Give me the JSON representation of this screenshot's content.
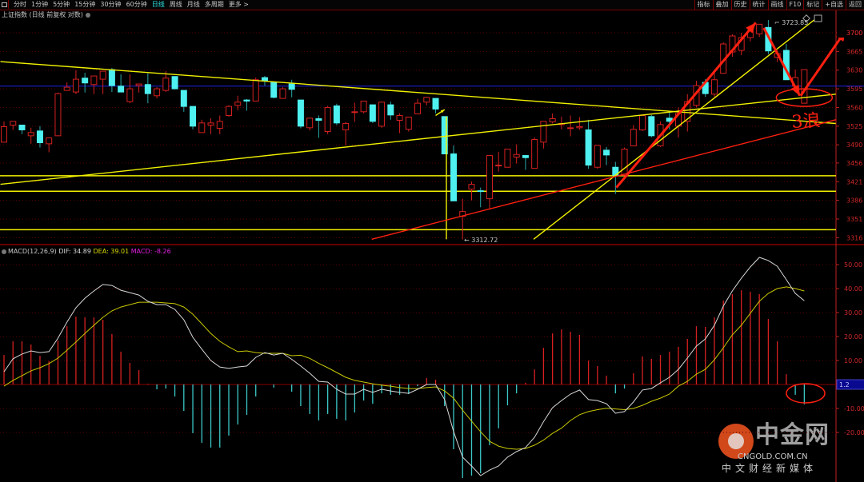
{
  "toolbar": {
    "periods": [
      "分时",
      "1分钟",
      "5分钟",
      "15分钟",
      "30分钟",
      "60分钟",
      "日线",
      "周线",
      "月线",
      "多周期",
      "更多 >"
    ],
    "active_period": "日线",
    "actions": [
      "指标",
      "叠加",
      "历史",
      "统计",
      "画线",
      "F10",
      "标记",
      "+自选",
      "返回"
    ]
  },
  "chart_title": "上证指数 (日线 前复权 对数)",
  "macd_legend": {
    "name": "MACD(12,26,9)",
    "dif": "DIF: 34.89",
    "dea": "DEA: 39.01",
    "macd": "MACD: -8.26"
  },
  "colors": {
    "up": "#d42020",
    "down": "#4ef0f0",
    "dif": "#d8d8d8",
    "dea": "#c8c800",
    "axis": "#c02020",
    "grid": "#5a0000",
    "priceline": "#2020e0",
    "trend_yellow": "#f0f000",
    "trend_red": "#ff2010"
  },
  "watermark": {
    "name": "中金网",
    "url": "CNGOLD.COM.CN",
    "slogan": "中文财经新媒体"
  },
  "chart_data": [
    {
      "type": "candlestick",
      "title": "",
      "scale": "log",
      "y_ticks": [
        3700,
        3665,
        3630,
        3595,
        3560,
        3525,
        3490,
        3456,
        3421,
        3386,
        3351,
        3316
      ],
      "ylim": [
        3305,
        3735
      ],
      "y_marker_label": "3700",
      "high_label": "3723.85",
      "low_label": "3312.72",
      "grid": true,
      "ohlc": [
        [
          3495,
          3534,
          3495,
          3524
        ],
        [
          3527,
          3534,
          3518,
          3534
        ],
        [
          3527,
          3527,
          3510,
          3518
        ],
        [
          3507,
          3522,
          3492,
          3513
        ],
        [
          3516,
          3525,
          3485,
          3494
        ],
        [
          3492,
          3503,
          3476,
          3503
        ],
        [
          3507,
          3588,
          3507,
          3586
        ],
        [
          3592,
          3607,
          3592,
          3598
        ],
        [
          3589,
          3630,
          3585,
          3613
        ],
        [
          3615,
          3625,
          3588,
          3606
        ],
        [
          3603,
          3619,
          3585,
          3619
        ],
        [
          3613,
          3628,
          3585,
          3628
        ],
        [
          3631,
          3634,
          3589,
          3601
        ],
        [
          3600,
          3622,
          3589,
          3589
        ],
        [
          3571,
          3622,
          3568,
          3595
        ],
        [
          3601,
          3604,
          3588,
          3604
        ],
        [
          3603,
          3624,
          3568,
          3586
        ],
        [
          3582,
          3598,
          3577,
          3595
        ],
        [
          3592,
          3628,
          3589,
          3615
        ],
        [
          3618,
          3618,
          3594,
          3595
        ],
        [
          3592,
          3592,
          3552,
          3562
        ],
        [
          3562,
          3562,
          3519,
          3525
        ],
        [
          3513,
          3537,
          3513,
          3531
        ],
        [
          3527,
          3540,
          3510,
          3531
        ],
        [
          3521,
          3545,
          3510,
          3534
        ],
        [
          3545,
          3564,
          3543,
          3562
        ],
        [
          3564,
          3582,
          3555,
          3570
        ],
        [
          3574,
          3576,
          3554,
          3572
        ],
        [
          3572,
          3616,
          3572,
          3612
        ],
        [
          3616,
          3619,
          3601,
          3610
        ],
        [
          3607,
          3607,
          3577,
          3579
        ],
        [
          3577,
          3598,
          3577,
          3595
        ],
        [
          3604,
          3612,
          3579,
          3594
        ],
        [
          3574,
          3574,
          3521,
          3525
        ],
        [
          3522,
          3540,
          3517,
          3540
        ],
        [
          3539,
          3545,
          3503,
          3536
        ],
        [
          3515,
          3563,
          3510,
          3560
        ],
        [
          3563,
          3567,
          3527,
          3531
        ],
        [
          3518,
          3533,
          3489,
          3530
        ],
        [
          3551,
          3569,
          3533,
          3552
        ],
        [
          3552,
          3572,
          3549,
          3572
        ],
        [
          3565,
          3565,
          3531,
          3534
        ],
        [
          3525,
          3570,
          3522,
          3570
        ],
        [
          3565,
          3571,
          3537,
          3546
        ],
        [
          3536,
          3549,
          3512,
          3545
        ],
        [
          3519,
          3542,
          3515,
          3542
        ],
        [
          3548,
          3576,
          3548,
          3568
        ],
        [
          3570,
          3580,
          3564,
          3579
        ],
        [
          3577,
          3577,
          3549,
          3557
        ],
        [
          3543,
          3543,
          3473,
          3473
        ],
        [
          3473,
          3489,
          3385,
          3385
        ],
        [
          3356,
          3389,
          3312.72,
          3365
        ],
        [
          3407,
          3421,
          3386,
          3416
        ],
        [
          3404,
          3410,
          3373,
          3403
        ],
        [
          3389,
          3470,
          3370,
          3470
        ],
        [
          3451,
          3477,
          3440,
          3452
        ],
        [
          3448,
          3482,
          3448,
          3482
        ],
        [
          3467,
          3491,
          3455,
          3472
        ],
        [
          3470,
          3470,
          3443,
          3466
        ],
        [
          3446,
          3504,
          3446,
          3500
        ],
        [
          3495,
          3534,
          3483,
          3534
        ],
        [
          3533,
          3549,
          3530,
          3539
        ],
        [
          3528,
          3543,
          3519,
          3530
        ],
        [
          3521,
          3545,
          3506,
          3522
        ],
        [
          3522,
          3542,
          3518,
          3524
        ],
        [
          3518,
          3537,
          3445,
          3452
        ],
        [
          3448,
          3489,
          3445,
          3489
        ],
        [
          3480,
          3486,
          3452,
          3471
        ],
        [
          3448,
          3458,
          3398,
          3433
        ],
        [
          3433,
          3485,
          3433,
          3482
        ],
        [
          3488,
          3527,
          3488,
          3519
        ],
        [
          3518,
          3545,
          3516,
          3545
        ],
        [
          3543,
          3546,
          3504,
          3507
        ],
        [
          3488,
          3534,
          3486,
          3528
        ],
        [
          3540,
          3552,
          3519,
          3534
        ],
        [
          3525,
          3560,
          3504,
          3549
        ],
        [
          3534,
          3585,
          3515,
          3571
        ],
        [
          3564,
          3610,
          3560,
          3601
        ],
        [
          3607,
          3613,
          3580,
          3586
        ],
        [
          3585,
          3628,
          3580,
          3612
        ],
        [
          3624,
          3682,
          3624,
          3679
        ],
        [
          3664,
          3697,
          3655,
          3694
        ],
        [
          3667,
          3700,
          3658,
          3691
        ],
        [
          3691,
          3712,
          3684,
          3704
        ],
        [
          3698,
          3716,
          3692,
          3716
        ],
        [
          3710,
          3723.85,
          3660,
          3666
        ],
        [
          3654,
          3667,
          3645,
          3661
        ],
        [
          3667,
          3679,
          3612,
          3612
        ],
        [
          3600,
          3631,
          3598,
          3616
        ],
        [
          3568,
          3631,
          3568,
          3631
        ]
      ],
      "reference_line": 3600,
      "horizontal_lines": [
        3432,
        3403,
        3331
      ],
      "trendlines": [
        {
          "color": "yellow",
          "from": [
            -0.4,
            3646
          ],
          "to": [
            92.5,
            3530
          ]
        },
        {
          "color": "yellow",
          "from": [
            -0.4,
            3416
          ],
          "to": [
            92.5,
            3585
          ]
        },
        {
          "color": "yellow",
          "from": [
            58.9,
            3313
          ],
          "to": [
            90.1,
            3724
          ]
        },
        {
          "color": "yellow",
          "from": [
            49.2,
            3543
          ],
          "to": [
            49.2,
            3313
          ]
        },
        {
          "color": "red",
          "from": [
            40.9,
            3313
          ],
          "to": [
            92.5,
            3537
          ]
        }
      ],
      "arrows": [
        {
          "color": "red",
          "from": [
            68.1,
            3410
          ],
          "to": [
            83.6,
            3719
          ]
        },
        {
          "color": "red",
          "from": [
            84.5,
            3709
          ],
          "to": [
            88.5,
            3582
          ]
        },
        {
          "color": "red",
          "from": [
            88.6,
            3582
          ],
          "to": [
            93.6,
            3704
          ]
        },
        {
          "color": "yellow",
          "from": [
            48,
            3545
          ],
          "to": [
            49,
            3556
          ]
        }
      ],
      "circle_at": [
        89,
        3580
      ],
      "handwritten_note": "3浪"
    },
    {
      "type": "macd",
      "title": "MACD(12,26,9)",
      "y_ticks": [
        50,
        40,
        30,
        20,
        10,
        -10,
        -20
      ],
      "y_tick_labels": [
        "50.00",
        "40.00",
        "30.00",
        "20.00",
        "10.00",
        "-10.00",
        "-20.00"
      ],
      "current_marker": "1.2",
      "ylim": [
        -41,
        57
      ],
      "dif": [
        5.3,
        10.7,
        12.7,
        14,
        13.3,
        13.7,
        19.3,
        26,
        32,
        36,
        39,
        41.7,
        41.3,
        39.3,
        38.3,
        37.3,
        34.7,
        33.3,
        33.3,
        31.3,
        27,
        19.7,
        14.7,
        10,
        7.3,
        6.7,
        7.3,
        7.7,
        11.3,
        13.3,
        12.3,
        13,
        10.5,
        7.7,
        4.7,
        1.3,
        1,
        -2,
        -4,
        -4,
        -2,
        -3.3,
        -2,
        -2.7,
        -3.3,
        -3.7,
        -2,
        0,
        0,
        -6.3,
        -19.7,
        -30.3,
        -34,
        -38,
        -35.7,
        -34,
        -30.3,
        -28,
        -26.3,
        -22,
        -15.5,
        -9.7,
        -6.7,
        -4,
        -2.3,
        -6.3,
        -6.7,
        -8,
        -12,
        -11.3,
        -7.3,
        -2.3,
        -1.7,
        0.7,
        3,
        6.3,
        11,
        16,
        19,
        24.7,
        32.7,
        39,
        44.3,
        49,
        53,
        51.7,
        49.3,
        43.7,
        38,
        34.89
      ],
      "dea": [
        -0.7,
        1.7,
        3.7,
        5.7,
        7,
        8.7,
        11,
        14.3,
        17.7,
        21.3,
        24.7,
        28,
        30.7,
        32.3,
        33.3,
        34.3,
        34.3,
        34.3,
        34,
        33.7,
        32.3,
        29.3,
        25.3,
        21.3,
        18,
        15.7,
        13.7,
        14,
        13.3,
        13,
        13,
        13,
        12,
        12.2,
        10.9,
        8.8,
        7,
        5,
        3,
        1.7,
        1,
        0.3,
        -0.3,
        -0.7,
        -1.3,
        -1.7,
        -1.7,
        -1.3,
        -1,
        -2.7,
        -5.7,
        -10.7,
        -15.3,
        -19.7,
        -23.7,
        -25.7,
        -26.7,
        -27,
        -26.7,
        -25.3,
        -23.2,
        -20.4,
        -18.2,
        -15,
        -12.6,
        -11.3,
        -10.5,
        -9.9,
        -10.2,
        -10.5,
        -10,
        -8.7,
        -7,
        -5.7,
        -4,
        -0.7,
        1.3,
        4.3,
        6.3,
        10.3,
        15.3,
        20.7,
        24.7,
        29.7,
        34.7,
        38,
        40,
        40.7,
        40,
        39.01
      ],
      "macd": [
        12.3,
        18,
        18,
        16.7,
        12,
        9.7,
        18.3,
        24.3,
        28.3,
        28,
        28,
        27,
        21,
        13.7,
        9,
        6,
        0.3,
        -2,
        -1.7,
        -5,
        -11,
        -20.3,
        -24.3,
        -26.3,
        -26.3,
        -21.3,
        -16.7,
        -12.7,
        -5,
        0,
        -1.3,
        0,
        -3,
        -9,
        -12.3,
        -15,
        -12.3,
        -14.3,
        -15,
        -11.7,
        -6.7,
        -8,
        -3.7,
        -4.3,
        -4.3,
        -4,
        -0.7,
        2.7,
        2,
        -9,
        -27,
        -39,
        -38,
        -37,
        -25.3,
        -18.3,
        -8.7,
        -3.7,
        0.7,
        6.3,
        15.3,
        21.3,
        23,
        22,
        20.7,
        10,
        7.7,
        3.7,
        -3.7,
        -1.7,
        4.7,
        11.7,
        10.7,
        12.3,
        13.7,
        15.7,
        19,
        24.3,
        24,
        28,
        35,
        37.7,
        39.3,
        38.7,
        37.7,
        27.3,
        18,
        4.3,
        -4.3,
        -8.26
      ]
    }
  ]
}
